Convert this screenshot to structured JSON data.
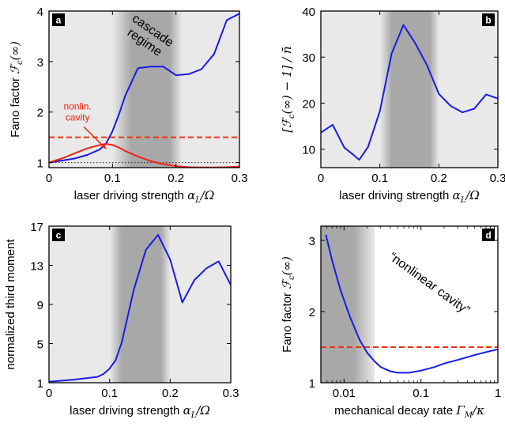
{
  "colors": {
    "light_band": "#e9e9e9",
    "dark_band": "#a8a8a8",
    "blue": "#1a1ae6",
    "red": "#ee2211",
    "orange_dashed": "#ee3311",
    "dotted": "#222222",
    "badge_bg": "#000000",
    "badge_text": "#ffffff"
  },
  "chart_data": [
    {
      "panel": "a",
      "type": "line",
      "title": "",
      "xlabel_plain": "laser driving strength ",
      "xlabel_math": "α",
      "xlabel_sub": "L",
      "xlabel_tail": "/Ω",
      "ylabel_plain": "Fano factor ",
      "ylabel_math": "ℱ",
      "ylabel_sub": "c",
      "ylabel_tail": "(∞)",
      "xlim": [
        0,
        0.3
      ],
      "ylim": [
        0.9,
        4
      ],
      "x_ticks": [
        0,
        0.1,
        0.2,
        0.3
      ],
      "x_tick_labels": [
        "0",
        "0.1",
        "0.2",
        "0.3"
      ],
      "y_ticks": [
        1,
        2,
        3,
        4
      ],
      "y_tick_labels": [
        "1",
        "2",
        "3",
        "4"
      ],
      "shading": {
        "light": [
          0,
          0.3
        ],
        "dark_center": [
          0.13,
          0.19
        ],
        "dark_fade": [
          0.1,
          0.21
        ]
      },
      "hlines": [
        {
          "y": 1.5,
          "style": "dashed",
          "color": "orange_dashed"
        },
        {
          "y": 1.0,
          "style": "dotted",
          "color": "dotted"
        }
      ],
      "annotations": [
        {
          "text_lines": [
            "cascade",
            "regime"
          ],
          "rotation": 35,
          "at": [
            0.16,
            3.55
          ]
        },
        {
          "text_lines": [
            "nonlin.",
            "cavity"
          ],
          "color": "red",
          "at": [
            0.045,
            2.05
          ],
          "arrow_to": [
            0.09,
            1.27
          ]
        }
      ],
      "series": [
        {
          "color": "blue",
          "x": [
            0,
            0.02,
            0.04,
            0.06,
            0.08,
            0.09,
            0.1,
            0.11,
            0.12,
            0.14,
            0.16,
            0.18,
            0.2,
            0.22,
            0.24,
            0.26,
            0.28,
            0.3
          ],
          "y": [
            1.0,
            1.04,
            1.08,
            1.15,
            1.26,
            1.38,
            1.62,
            1.95,
            2.32,
            2.87,
            2.9,
            2.9,
            2.73,
            2.75,
            2.85,
            3.15,
            3.82,
            3.95
          ]
        },
        {
          "color": "red",
          "x": [
            0,
            0.02,
            0.04,
            0.06,
            0.08,
            0.09,
            0.1,
            0.11,
            0.12,
            0.14,
            0.16,
            0.18,
            0.2,
            0.22,
            0.24,
            0.26,
            0.28,
            0.3
          ],
          "y": [
            1.0,
            1.08,
            1.18,
            1.28,
            1.35,
            1.37,
            1.35,
            1.3,
            1.23,
            1.12,
            1.03,
            0.97,
            0.93,
            0.91,
            0.905,
            0.905,
            0.91,
            0.92
          ]
        }
      ]
    },
    {
      "panel": "b",
      "type": "line",
      "title": "",
      "xlabel_plain": "laser driving strength ",
      "xlabel_math": "α",
      "xlabel_sub": "L",
      "xlabel_tail": "/Ω",
      "ylabel_plain": "[ℱ",
      "ylabel_math": "",
      "ylabel_sub": "c",
      "ylabel_tail": "(∞) − 1] / n̄",
      "xlim": [
        0,
        0.3
      ],
      "ylim": [
        6,
        40
      ],
      "x_ticks": [
        0,
        0.1,
        0.2,
        0.3
      ],
      "x_tick_labels": [
        "0",
        "0.1",
        "0.2",
        "0.3"
      ],
      "y_ticks": [
        10,
        20,
        30,
        40
      ],
      "y_tick_labels": [
        "10",
        "20",
        "30",
        "40"
      ],
      "shading": {
        "light": [
          0,
          0.3
        ],
        "dark_center": [
          0.12,
          0.185
        ],
        "dark_fade": [
          0.1,
          0.2
        ]
      },
      "series": [
        {
          "color": "blue",
          "x": [
            0,
            0.02,
            0.04,
            0.055,
            0.065,
            0.08,
            0.1,
            0.12,
            0.14,
            0.16,
            0.18,
            0.2,
            0.22,
            0.24,
            0.26,
            0.28,
            0.3
          ],
          "y": [
            13.6,
            15.3,
            10.3,
            8.8,
            7.7,
            10.5,
            18.3,
            30.8,
            37.0,
            33.0,
            28.2,
            22.0,
            19.4,
            18.0,
            18.8,
            21.9,
            21.0
          ]
        }
      ]
    },
    {
      "panel": "c",
      "type": "line",
      "title": "",
      "xlabel_plain": "laser driving strength ",
      "xlabel_math": "α",
      "xlabel_sub": "L",
      "xlabel_tail": "/Ω",
      "ylabel_plain": "normalized third moment",
      "ylabel_math": "",
      "ylabel_sub": "",
      "ylabel_tail": "",
      "xlim": [
        0,
        0.3
      ],
      "ylim": [
        1,
        17
      ],
      "x_ticks": [
        0,
        0.1,
        0.2,
        0.3
      ],
      "x_tick_labels": [
        "0",
        "0.1",
        "0.2",
        "0.3"
      ],
      "y_ticks": [
        1,
        5,
        9,
        13,
        17
      ],
      "y_tick_labels": [
        "1",
        "5",
        "9",
        "13",
        "17"
      ],
      "shading": {
        "light": [
          0,
          0.3
        ],
        "dark_center": [
          0.12,
          0.185
        ],
        "dark_fade": [
          0.1,
          0.2
        ]
      },
      "series": [
        {
          "color": "blue",
          "x": [
            0,
            0.02,
            0.04,
            0.06,
            0.08,
            0.09,
            0.1,
            0.11,
            0.12,
            0.14,
            0.16,
            0.18,
            0.2,
            0.22,
            0.24,
            0.26,
            0.28,
            0.3
          ],
          "y": [
            1.1,
            1.2,
            1.3,
            1.45,
            1.6,
            1.9,
            2.45,
            3.3,
            5.1,
            10.5,
            14.6,
            16.1,
            13.6,
            9.2,
            11.5,
            12.7,
            13.4,
            11.0
          ]
        }
      ]
    },
    {
      "panel": "d",
      "type": "line",
      "title": "",
      "xlabel_plain": "mechanical decay rate ",
      "xlabel_math": "Γ",
      "xlabel_sub": "M",
      "xlabel_tail": "/κ",
      "ylabel_plain": "Fano factor ",
      "ylabel_math": "ℱ",
      "ylabel_sub": "c",
      "ylabel_tail": "(∞)",
      "xscale": "log",
      "xlim": [
        0.005,
        1
      ],
      "ylim": [
        1,
        3.2
      ],
      "x_ticks": [
        0.01,
        0.1,
        1
      ],
      "x_tick_labels": [
        "0.01",
        "0.1",
        "1"
      ],
      "y_ticks": [
        1,
        2,
        3
      ],
      "y_tick_labels": [
        "1",
        "2",
        "3"
      ],
      "shading": {
        "light": [
          0.005,
          0.025
        ],
        "dark_center": [
          0.005,
          0.0135
        ],
        "dark_fade": [
          0.005,
          0.025
        ]
      },
      "hlines": [
        {
          "y": 1.5,
          "style": "dashed",
          "color": "orange_dashed"
        }
      ],
      "annotations": [
        {
          "text_lines": [
            "“nonlinear cavity”"
          ],
          "rotation": 36,
          "at": [
            0.12,
            2.35
          ]
        }
      ],
      "series": [
        {
          "color": "blue",
          "x": [
            0.0058,
            0.007,
            0.009,
            0.012,
            0.016,
            0.02,
            0.025,
            0.03,
            0.04,
            0.05,
            0.07,
            0.1,
            0.15,
            0.2,
            0.3,
            0.5,
            0.7,
            1.0
          ],
          "y": [
            3.08,
            2.72,
            2.3,
            1.92,
            1.6,
            1.42,
            1.3,
            1.22,
            1.16,
            1.14,
            1.14,
            1.17,
            1.22,
            1.27,
            1.32,
            1.39,
            1.43,
            1.47
          ]
        }
      ]
    }
  ],
  "panel_labels": [
    "a",
    "b",
    "c",
    "d"
  ]
}
